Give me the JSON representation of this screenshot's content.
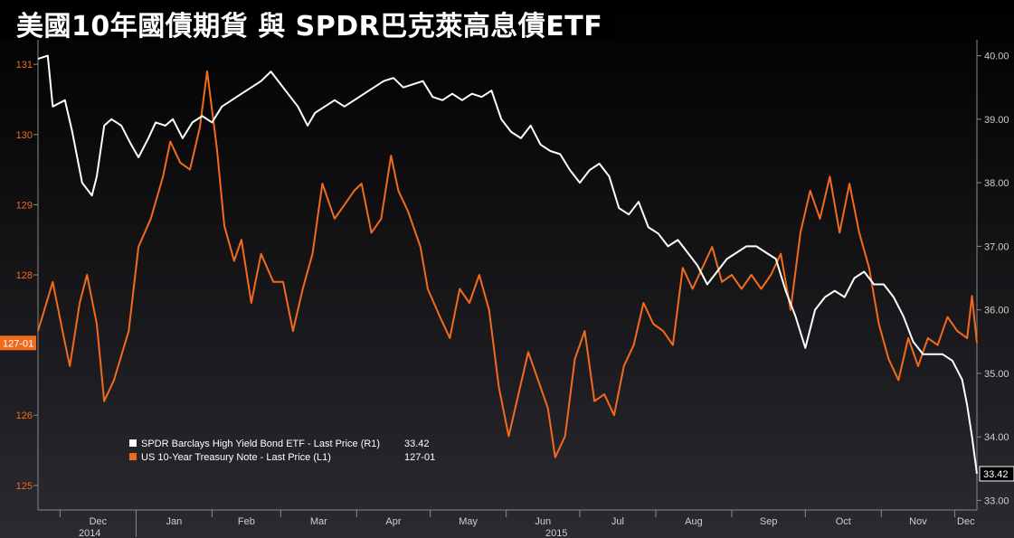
{
  "title": "美國10年國債期貨 與 SPDR巴克萊高息債ETF",
  "colors": {
    "background_top": "#000000",
    "background_bottom": "#2a2a30",
    "treasury": "#f26b1d",
    "hyg": "#ffffff",
    "axis_left_text": "#f26b1d",
    "axis_text": "#cfcfcf",
    "grid": "#3a3a42"
  },
  "chart_data": {
    "type": "line",
    "title": "美國10年國債期貨 與 SPDR巴克萊高息債ETF",
    "x_labels": {
      "months": [
        "Dec",
        "Jan",
        "Feb",
        "Mar",
        "Apr",
        "May",
        "Jun",
        "Jul",
        "Aug",
        "Sep",
        "Oct",
        "Nov",
        "Dec"
      ],
      "years": [
        "2014",
        "2015"
      ]
    },
    "x_range": [
      "2014-11-22",
      "2015-12-10"
    ],
    "y_left": {
      "ticks": [
        "131",
        "130",
        "129",
        "128",
        "126",
        "125"
      ],
      "tick_values": [
        131,
        130,
        129,
        128,
        126,
        125
      ],
      "range": [
        124.65,
        131.35
      ],
      "last_label": "127-01",
      "last_value": 127.03
    },
    "y_right": {
      "ticks": [
        "40.00",
        "39.00",
        "38.00",
        "37.00",
        "36.00",
        "35.00",
        "34.00",
        "33.00"
      ],
      "tick_values": [
        40,
        39,
        38,
        37,
        36,
        35,
        34,
        33
      ],
      "range": [
        32.85,
        40.25
      ],
      "last_label": "33.42",
      "last_value": 33.42
    },
    "legend": {
      "position": "bottom-left",
      "items": [
        {
          "label": "SPDR Barclays High Yield Bond ETF - Last Price (R1)",
          "value": "33.42"
        },
        {
          "label": "US 10-Year Treasury Note - Last Price (L1)",
          "value": "127-01"
        }
      ]
    },
    "series": [
      {
        "name": "US 10-Year Treasury Note - Last Price (L1)",
        "axis": "left",
        "points": [
          [
            "2014-11-22",
            127.2
          ],
          [
            "2014-11-28",
            127.9
          ],
          [
            "2014-12-02",
            127.2
          ],
          [
            "2014-12-05",
            126.7
          ],
          [
            "2014-12-09",
            127.6
          ],
          [
            "2014-12-12",
            128.0
          ],
          [
            "2014-12-16",
            127.3
          ],
          [
            "2014-12-19",
            126.2
          ],
          [
            "2014-12-23",
            126.5
          ],
          [
            "2014-12-29",
            127.2
          ],
          [
            "2015-01-02",
            128.4
          ],
          [
            "2015-01-07",
            128.8
          ],
          [
            "2015-01-12",
            129.4
          ],
          [
            "2015-01-15",
            129.9
          ],
          [
            "2015-01-19",
            129.6
          ],
          [
            "2015-01-23",
            129.5
          ],
          [
            "2015-01-27",
            130.1
          ],
          [
            "2015-01-30",
            130.9
          ],
          [
            "2015-02-03",
            129.8
          ],
          [
            "2015-02-06",
            128.7
          ],
          [
            "2015-02-10",
            128.2
          ],
          [
            "2015-02-13",
            128.5
          ],
          [
            "2015-02-17",
            127.6
          ],
          [
            "2015-02-21",
            128.3
          ],
          [
            "2015-02-26",
            127.9
          ],
          [
            "2015-03-02",
            127.9
          ],
          [
            "2015-03-06",
            127.2
          ],
          [
            "2015-03-10",
            127.8
          ],
          [
            "2015-03-14",
            128.3
          ],
          [
            "2015-03-18",
            129.3
          ],
          [
            "2015-03-23",
            128.8
          ],
          [
            "2015-03-27",
            129.0
          ],
          [
            "2015-03-31",
            129.2
          ],
          [
            "2015-04-03",
            129.3
          ],
          [
            "2015-04-07",
            128.6
          ],
          [
            "2015-04-11",
            128.8
          ],
          [
            "2015-04-15",
            129.7
          ],
          [
            "2015-04-18",
            129.2
          ],
          [
            "2015-04-22",
            128.9
          ],
          [
            "2015-04-27",
            128.4
          ],
          [
            "2015-04-30",
            127.8
          ],
          [
            "2015-05-05",
            127.4
          ],
          [
            "2015-05-09",
            127.1
          ],
          [
            "2015-05-13",
            127.8
          ],
          [
            "2015-05-17",
            127.6
          ],
          [
            "2015-05-21",
            128.0
          ],
          [
            "2015-05-25",
            127.5
          ],
          [
            "2015-05-29",
            126.4
          ],
          [
            "2015-06-02",
            125.7
          ],
          [
            "2015-06-06",
            126.3
          ],
          [
            "2015-06-10",
            126.9
          ],
          [
            "2015-06-14",
            126.5
          ],
          [
            "2015-06-18",
            126.1
          ],
          [
            "2015-06-21",
            125.4
          ],
          [
            "2015-06-25",
            125.7
          ],
          [
            "2015-06-29",
            126.8
          ],
          [
            "2015-07-03",
            127.2
          ],
          [
            "2015-07-07",
            126.2
          ],
          [
            "2015-07-11",
            126.3
          ],
          [
            "2015-07-15",
            126.0
          ],
          [
            "2015-07-19",
            126.7
          ],
          [
            "2015-07-23",
            127.0
          ],
          [
            "2015-07-27",
            127.6
          ],
          [
            "2015-07-31",
            127.3
          ],
          [
            "2015-08-04",
            127.2
          ],
          [
            "2015-08-08",
            127.0
          ],
          [
            "2015-08-12",
            128.1
          ],
          [
            "2015-08-16",
            127.8
          ],
          [
            "2015-08-20",
            128.1
          ],
          [
            "2015-08-24",
            128.4
          ],
          [
            "2015-08-28",
            127.9
          ],
          [
            "2015-09-01",
            128.0
          ],
          [
            "2015-09-05",
            127.8
          ],
          [
            "2015-09-09",
            128.0
          ],
          [
            "2015-09-13",
            127.8
          ],
          [
            "2015-09-17",
            128.0
          ],
          [
            "2015-09-21",
            128.3
          ],
          [
            "2015-09-25",
            127.5
          ],
          [
            "2015-09-29",
            128.6
          ],
          [
            "2015-10-03",
            129.2
          ],
          [
            "2015-10-07",
            128.8
          ],
          [
            "2015-10-11",
            129.4
          ],
          [
            "2015-10-15",
            128.6
          ],
          [
            "2015-10-19",
            129.3
          ],
          [
            "2015-10-23",
            128.6
          ],
          [
            "2015-10-27",
            128.1
          ],
          [
            "2015-10-31",
            127.3
          ],
          [
            "2015-11-04",
            126.8
          ],
          [
            "2015-11-08",
            126.5
          ],
          [
            "2015-11-12",
            127.1
          ],
          [
            "2015-11-16",
            126.7
          ],
          [
            "2015-11-20",
            127.1
          ],
          [
            "2015-11-24",
            127.0
          ],
          [
            "2015-11-28",
            127.4
          ],
          [
            "2015-12-02",
            127.2
          ],
          [
            "2015-12-06",
            127.1
          ],
          [
            "2015-12-08",
            127.7
          ],
          [
            "2015-12-10",
            127.03
          ]
        ]
      },
      {
        "name": "SPDR Barclays High Yield Bond ETF - Last Price (R1)",
        "axis": "right",
        "points": [
          [
            "2014-11-22",
            39.95
          ],
          [
            "2014-11-26",
            40.0
          ],
          [
            "2014-11-28",
            39.2
          ],
          [
            "2014-12-03",
            39.3
          ],
          [
            "2014-12-06",
            38.8
          ],
          [
            "2014-12-10",
            38.0
          ],
          [
            "2014-12-14",
            37.8
          ],
          [
            "2014-12-16",
            38.1
          ],
          [
            "2014-12-19",
            38.9
          ],
          [
            "2014-12-22",
            39.0
          ],
          [
            "2014-12-26",
            38.9
          ],
          [
            "2014-12-30",
            38.6
          ],
          [
            "2015-01-02",
            38.4
          ],
          [
            "2015-01-06",
            38.7
          ],
          [
            "2015-01-09",
            38.95
          ],
          [
            "2015-01-13",
            38.9
          ],
          [
            "2015-01-16",
            39.0
          ],
          [
            "2015-01-20",
            38.7
          ],
          [
            "2015-01-24",
            38.95
          ],
          [
            "2015-01-28",
            39.05
          ],
          [
            "2015-02-01",
            38.95
          ],
          [
            "2015-02-05",
            39.2
          ],
          [
            "2015-02-09",
            39.3
          ],
          [
            "2015-02-13",
            39.4
          ],
          [
            "2015-02-17",
            39.5
          ],
          [
            "2015-02-21",
            39.6
          ],
          [
            "2015-02-25",
            39.75
          ],
          [
            "2015-02-28",
            39.6
          ],
          [
            "2015-03-04",
            39.4
          ],
          [
            "2015-03-08",
            39.2
          ],
          [
            "2015-03-12",
            38.9
          ],
          [
            "2015-03-15",
            39.1
          ],
          [
            "2015-03-19",
            39.2
          ],
          [
            "2015-03-23",
            39.3
          ],
          [
            "2015-03-27",
            39.2
          ],
          [
            "2015-03-31",
            39.3
          ],
          [
            "2015-04-04",
            39.4
          ],
          [
            "2015-04-08",
            39.5
          ],
          [
            "2015-04-12",
            39.6
          ],
          [
            "2015-04-16",
            39.65
          ],
          [
            "2015-04-20",
            39.5
          ],
          [
            "2015-04-24",
            39.55
          ],
          [
            "2015-04-28",
            39.6
          ],
          [
            "2015-05-02",
            39.35
          ],
          [
            "2015-05-06",
            39.3
          ],
          [
            "2015-05-10",
            39.4
          ],
          [
            "2015-05-14",
            39.3
          ],
          [
            "2015-05-18",
            39.4
          ],
          [
            "2015-05-22",
            39.35
          ],
          [
            "2015-05-26",
            39.45
          ],
          [
            "2015-05-30",
            39.0
          ],
          [
            "2015-06-03",
            38.8
          ],
          [
            "2015-06-07",
            38.7
          ],
          [
            "2015-06-11",
            38.9
          ],
          [
            "2015-06-15",
            38.6
          ],
          [
            "2015-06-19",
            38.5
          ],
          [
            "2015-06-23",
            38.45
          ],
          [
            "2015-06-27",
            38.2
          ],
          [
            "2015-07-01",
            38.0
          ],
          [
            "2015-07-05",
            38.2
          ],
          [
            "2015-07-09",
            38.3
          ],
          [
            "2015-07-13",
            38.1
          ],
          [
            "2015-07-17",
            37.6
          ],
          [
            "2015-07-21",
            37.5
          ],
          [
            "2015-07-25",
            37.7
          ],
          [
            "2015-07-29",
            37.3
          ],
          [
            "2015-08-02",
            37.2
          ],
          [
            "2015-08-06",
            37.0
          ],
          [
            "2015-08-10",
            37.1
          ],
          [
            "2015-08-14",
            36.9
          ],
          [
            "2015-08-18",
            36.7
          ],
          [
            "2015-08-22",
            36.4
          ],
          [
            "2015-08-26",
            36.6
          ],
          [
            "2015-08-30",
            36.8
          ],
          [
            "2015-09-03",
            36.9
          ],
          [
            "2015-09-07",
            37.0
          ],
          [
            "2015-09-11",
            37.0
          ],
          [
            "2015-09-15",
            36.9
          ],
          [
            "2015-09-19",
            36.8
          ],
          [
            "2015-09-23",
            36.3
          ],
          [
            "2015-09-27",
            35.9
          ],
          [
            "2015-10-01",
            35.4
          ],
          [
            "2015-10-05",
            36.0
          ],
          [
            "2015-10-09",
            36.2
          ],
          [
            "2015-10-13",
            36.3
          ],
          [
            "2015-10-17",
            36.2
          ],
          [
            "2015-10-21",
            36.5
          ],
          [
            "2015-10-25",
            36.6
          ],
          [
            "2015-10-29",
            36.4
          ],
          [
            "2015-11-02",
            36.4
          ],
          [
            "2015-11-06",
            36.2
          ],
          [
            "2015-11-10",
            35.9
          ],
          [
            "2015-11-14",
            35.5
          ],
          [
            "2015-11-18",
            35.3
          ],
          [
            "2015-11-22",
            35.3
          ],
          [
            "2015-11-26",
            35.3
          ],
          [
            "2015-11-30",
            35.2
          ],
          [
            "2015-12-04",
            34.9
          ],
          [
            "2015-12-06",
            34.5
          ],
          [
            "2015-12-08",
            34.0
          ],
          [
            "2015-12-10",
            33.42
          ]
        ]
      }
    ]
  }
}
